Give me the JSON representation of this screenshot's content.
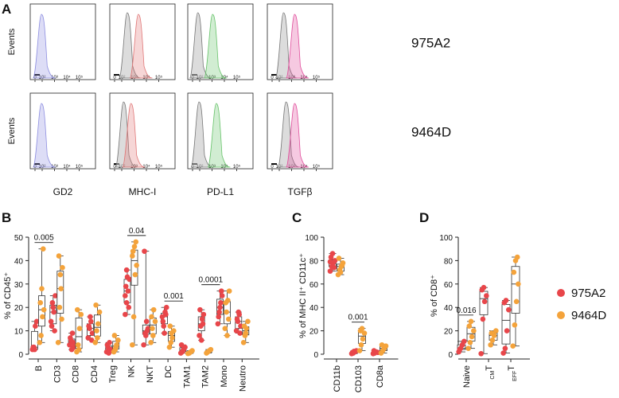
{
  "panels": {
    "A": "A",
    "B": "B",
    "C": "C",
    "D": "D"
  },
  "flow": {
    "y_label": "Events",
    "tick_labels": [
      "0",
      "10²",
      "10³",
      "10⁴",
      "10⁵"
    ],
    "markers": [
      "GD2",
      "MHC-I",
      "PD-L1",
      "TGFβ"
    ],
    "samples": [
      "975A2",
      "9464D"
    ],
    "colors": {
      "iso": "#bfbfbf",
      "GD2": "#8d8ee0",
      "MHC-I": "#e07777",
      "PD-L1": "#67c36a",
      "TGFβ": "#e04c9b"
    },
    "histograms": [
      [
        {
          "marker": "GD2",
          "iso": null,
          "stain": 1.0
        },
        {
          "marker": "MHC-I",
          "iso": 1.5,
          "stain": 2.4
        },
        {
          "marker": "PD-L1",
          "iso": 0.9,
          "stain": 2.1
        },
        {
          "marker": "TGFβ",
          "iso": 1.4,
          "stain": 2.3
        }
      ],
      [
        {
          "marker": "GD2",
          "iso": null,
          "stain": 1.0
        },
        {
          "marker": "MHC-I",
          "iso": 1.2,
          "stain": 1.8
        },
        {
          "marker": "PD-L1",
          "iso": 1.0,
          "stain": 2.4
        },
        {
          "marker": "TGFβ",
          "iso": 1.6,
          "stain": 2.3
        }
      ]
    ]
  },
  "chart_data": [
    {
      "type": "box",
      "id": "B",
      "title": "",
      "ylabel": "% of CD45⁺",
      "ylim": [
        0,
        50
      ],
      "yticks": [
        0,
        10,
        20,
        30,
        40,
        50
      ],
      "categories": [
        "B",
        "CD3",
        "CD8",
        "CD4",
        "Treg",
        "NK",
        "NKT",
        "DC",
        "TAM1",
        "TAM2",
        "Mono",
        "Neutro"
      ],
      "series": [
        {
          "name": "975A2",
          "color": "#e8464a",
          "values": [
            [
              2,
              3,
              12,
              14,
              3,
              2
            ],
            [
              14,
              22,
              18,
              25,
              12,
              20,
              10
            ],
            [
              4,
              6,
              9,
              3,
              7,
              2,
              5
            ],
            [
              7,
              11,
              14,
              9,
              12,
              16,
              6
            ],
            [
              1,
              3,
              5,
              2,
              4,
              0.5,
              1.5
            ],
            [
              17,
              22,
              27,
              32,
              29,
              33,
              20,
              25,
              36
            ],
            [
              4,
              9,
              14,
              11,
              44,
              8,
              10
            ],
            [
              16,
              12,
              18,
              20,
              14,
              9,
              17
            ],
            [
              0.5,
              1,
              2,
              3,
              4,
              1.5
            ],
            [
              8,
              12,
              15,
              17,
              19,
              6,
              13
            ],
            [
              13,
              18,
              22,
              25,
              16,
              20,
              27
            ],
            [
              10,
              14,
              17,
              12,
              15,
              18,
              9
            ]
          ]
        },
        {
          "name": "9464D",
          "color": "#f4a33b",
          "values": [
            [
              5,
              8,
              16,
              19,
              22,
              28,
              45
            ],
            [
              5,
              20,
              28,
              37,
              42,
              34,
              15
            ],
            [
              1,
              4,
              11,
              17,
              19,
              2
            ],
            [
              5,
              10,
              13,
              18,
              21,
              7
            ],
            [
              1,
              2,
              4,
              6,
              8,
              3
            ],
            [
              4,
              16,
              34,
              38,
              44,
              46,
              48,
              42
            ],
            [
              5,
              11,
              19,
              14,
              16,
              8
            ],
            [
              3,
              5,
              7,
              10,
              12,
              9
            ],
            [
              0.3,
              0.5,
              1,
              1.5
            ],
            [
              0.5,
              1,
              1.5,
              2,
              0.8
            ],
            [
              11,
              18,
              23,
              27,
              22,
              8,
              15
            ],
            [
              5,
              8,
              11,
              14,
              12,
              9
            ]
          ]
        }
      ],
      "comparisons": [
        {
          "a": "B",
          "b": "CD3",
          "label": "0.005"
        },
        {
          "a": "NK",
          "b": "NKT",
          "label": "0.04"
        },
        {
          "a": "DC",
          "b": "TAM1",
          "label": "0.001"
        },
        {
          "a": "TAM2",
          "b": "Mono",
          "label": "0.0001"
        }
      ]
    },
    {
      "type": "box",
      "id": "C",
      "title": "",
      "ylabel": "% of MHC II⁺ CD11c⁺",
      "ylim": [
        0,
        100
      ],
      "yticks": [
        0,
        20,
        40,
        60,
        80,
        100
      ],
      "categories": [
        "CD11b",
        "CD103",
        "CD8a"
      ],
      "series": [
        {
          "name": "975A2",
          "color": "#e8464a",
          "values": [
            [
              71,
              75,
              78,
              80,
              83,
              86,
              74,
              79
            ],
            [
              0.5,
              1,
              2,
              3,
              1.5,
              2.5
            ],
            [
              0.5,
              1,
              2,
              1.5,
              3
            ]
          ]
        },
        {
          "name": "9464D",
          "color": "#f4a33b",
          "values": [
            [
              68,
              72,
              75,
              78,
              82,
              70,
              76
            ],
            [
              3,
              8,
              13,
              18,
              20,
              22
            ],
            [
              1,
              3,
              5,
              7,
              8
            ]
          ]
        }
      ],
      "comparisons": [
        {
          "a": "CD103",
          "b": "CD103",
          "label": "0.001"
        }
      ]
    },
    {
      "type": "box",
      "id": "D",
      "title": "",
      "ylabel": "% of CD8⁺",
      "ylim": [
        0,
        100
      ],
      "yticks": [
        0,
        20,
        40,
        60,
        80,
        100
      ],
      "categories": [
        "Naive",
        "T_CM",
        "T_EFF"
      ],
      "series": [
        {
          "name": "975A2",
          "color": "#e8464a",
          "values": [
            [
              2,
              5,
              8,
              11,
              4
            ],
            [
              0.5,
              30,
              45,
              50,
              55,
              57
            ],
            [
              1,
              5,
              20,
              38,
              44,
              46
            ]
          ]
        },
        {
          "name": "9464D",
          "color": "#f4a33b",
          "values": [
            [
              5,
              10,
              15,
              20,
              24,
              28
            ],
            [
              8,
              12,
              16,
              20,
              18
            ],
            [
              7,
              25,
              45,
              60,
              70,
              80,
              83
            ]
          ]
        }
      ],
      "comparisons": [
        {
          "a": "Naive",
          "b": "Naive",
          "label": "0.016"
        }
      ]
    }
  ],
  "legend": [
    {
      "name": "975A2",
      "color": "#e8464a"
    },
    {
      "name": "9464D",
      "color": "#f4a33b"
    }
  ]
}
